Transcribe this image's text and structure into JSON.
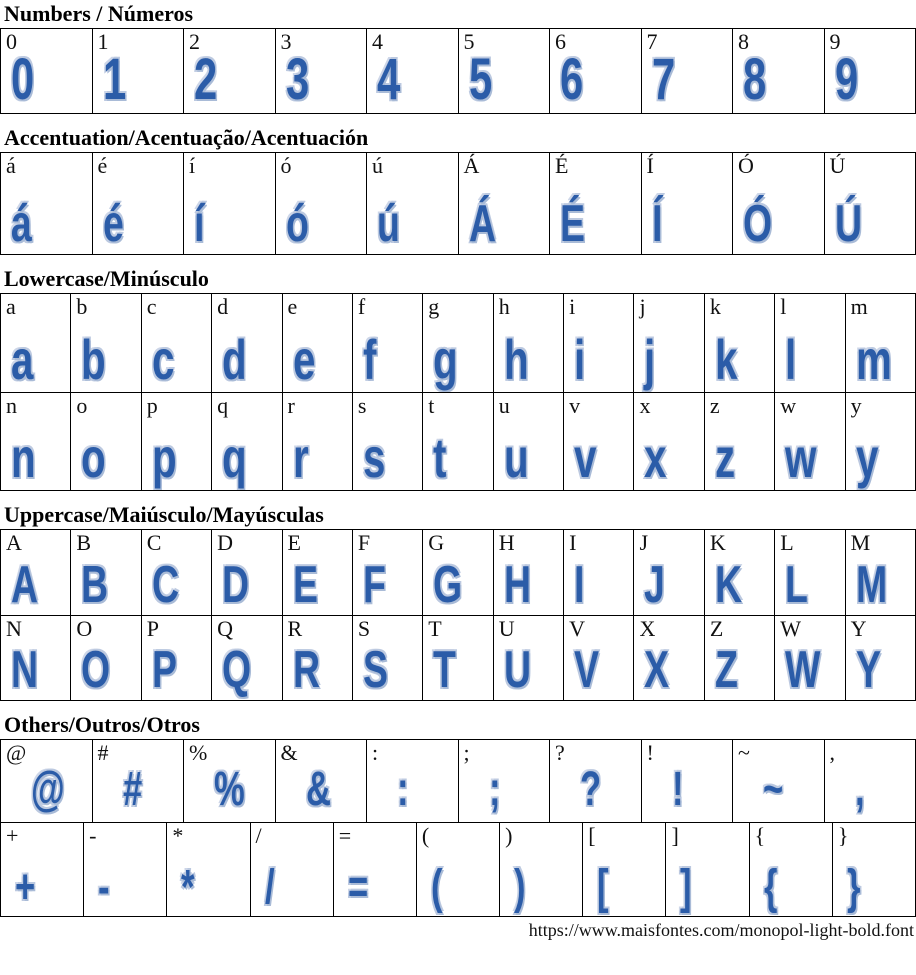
{
  "font_specimen": {
    "glyph_color": "#2b5ca8",
    "glyph_shadow_color": "#a9bbd7",
    "border_color": "#000000"
  },
  "sections": [
    {
      "id": "numbers",
      "title": "Numbers / Números",
      "rows": [
        [
          "0",
          "1",
          "2",
          "3",
          "4",
          "5",
          "6",
          "7",
          "8",
          "9"
        ]
      ]
    },
    {
      "id": "accent",
      "title": "Accentuation/Acentuação/Acentuación",
      "rows": [
        [
          "á",
          "é",
          "í",
          "ó",
          "ú",
          "Á",
          "É",
          "Í",
          "Ó",
          "Ú"
        ]
      ]
    },
    {
      "id": "lowercase",
      "title": "Lowercase/Minúsculo",
      "rows": [
        [
          "a",
          "b",
          "c",
          "d",
          "e",
          "f",
          "g",
          "h",
          "i",
          "j",
          "k",
          "l",
          "m"
        ],
        [
          "n",
          "o",
          "p",
          "q",
          "r",
          "s",
          "t",
          "u",
          "v",
          "x",
          "z",
          "w",
          "y"
        ]
      ]
    },
    {
      "id": "uppercase",
      "title": "Uppercase/Maiúsculo/Mayúsculas",
      "rows": [
        [
          "A",
          "B",
          "C",
          "D",
          "E",
          "F",
          "G",
          "H",
          "I",
          "J",
          "K",
          "L",
          "M"
        ],
        [
          "N",
          "O",
          "P",
          "Q",
          "R",
          "S",
          "T",
          "U",
          "V",
          "X",
          "Z",
          "W",
          "Y"
        ]
      ]
    },
    {
      "id": "others",
      "title": "Others/Outros/Otros",
      "rows": [
        [
          "@",
          "#",
          "%",
          "&",
          ":",
          ";",
          "?",
          "!",
          "~",
          ","
        ],
        [
          "+",
          "-",
          "*",
          "/",
          "=",
          "(",
          ")",
          "[",
          "]",
          "{",
          "}"
        ]
      ]
    }
  ],
  "footer": {
    "url": "https://www.maisfontes.com/monopol-light-bold.font"
  }
}
